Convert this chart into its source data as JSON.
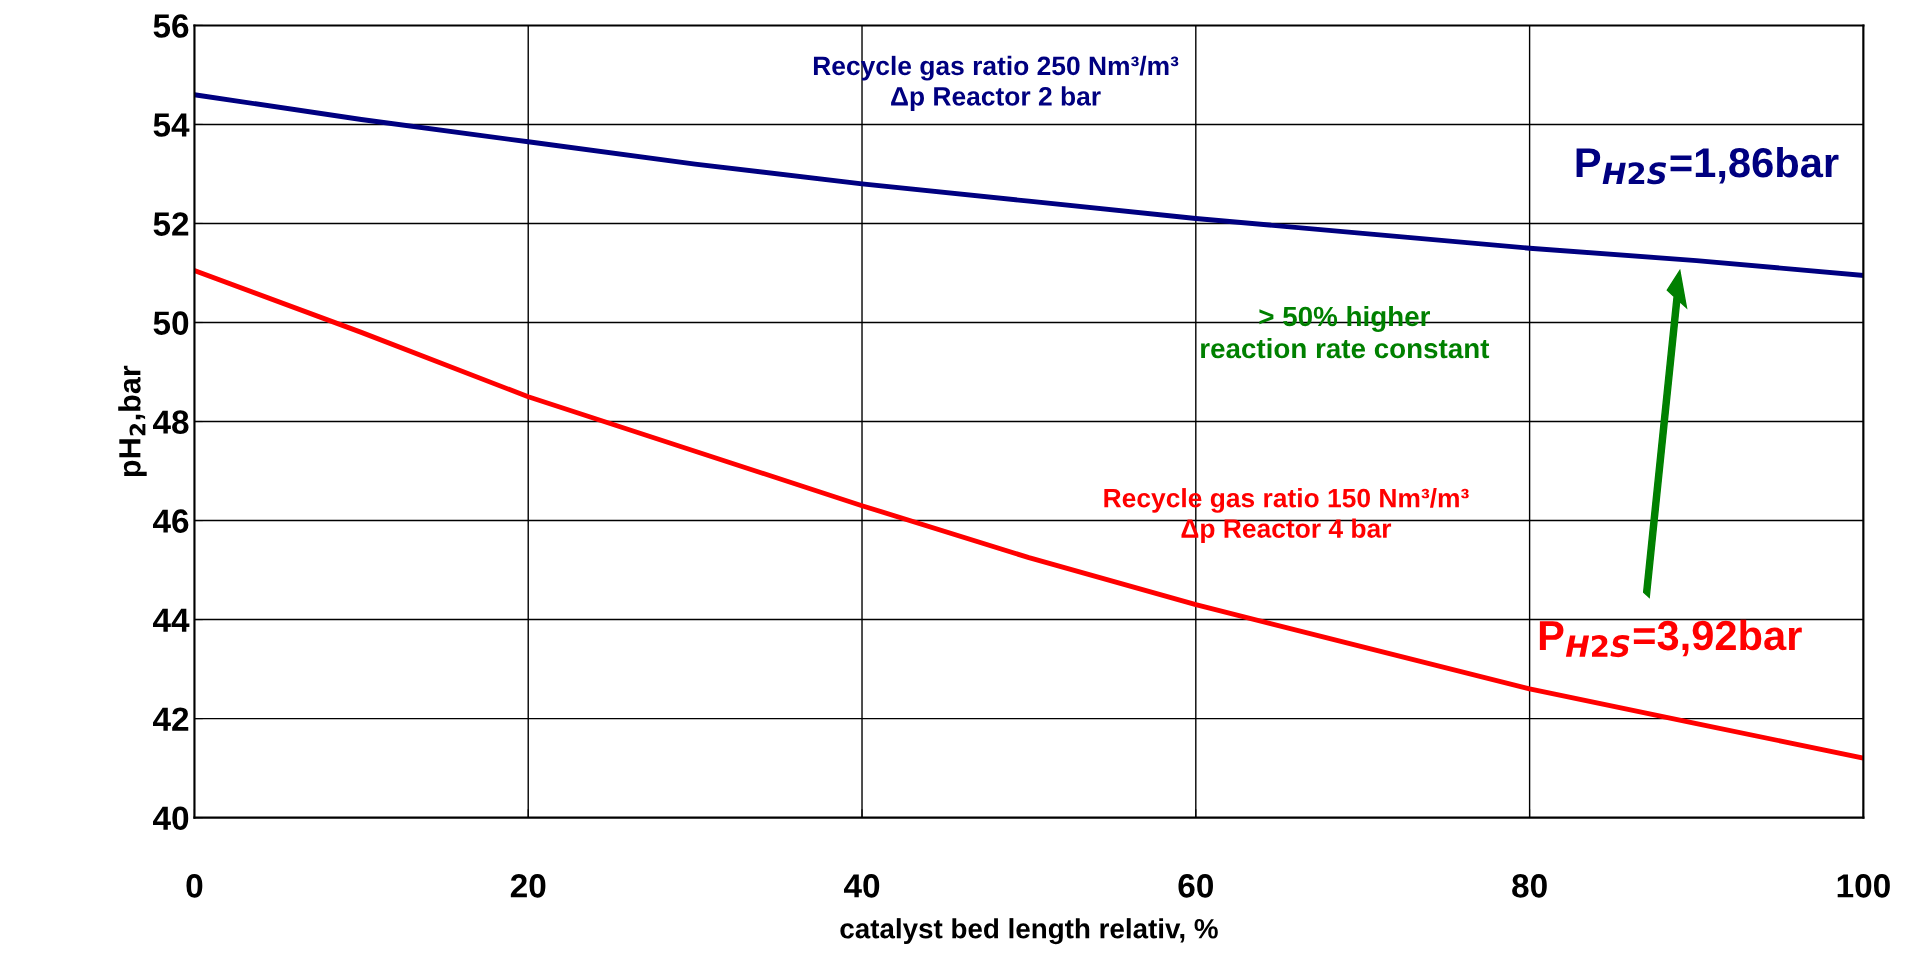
{
  "chart_data": {
    "type": "line",
    "xlabel": "catalyst bed length relativ, %",
    "ylabel": "pH$_{2}$,bar",
    "xlim": [
      0,
      100
    ],
    "ylim": [
      40,
      56
    ],
    "xticks": [
      0,
      20,
      40,
      60,
      80,
      100
    ],
    "yticks": [
      40,
      42,
      44,
      46,
      48,
      50,
      52,
      54,
      56
    ],
    "grid": true,
    "legend": false,
    "marker": "none",
    "line_style": "solid",
    "series": [
      {
        "color": "#000080",
        "x": [
          0,
          10,
          20,
          30,
          40,
          50,
          60,
          70,
          80,
          90,
          100
        ],
        "values": [
          54.6,
          54.1,
          53.65,
          53.2,
          52.8,
          52.45,
          52.1,
          51.8,
          51.5,
          51.25,
          50.95
        ]
      },
      {
        "color": "#ff0000",
        "x": [
          0,
          10,
          20,
          30,
          40,
          50,
          60,
          70,
          80,
          90,
          100
        ],
        "values": [
          51.05,
          49.8,
          48.5,
          47.4,
          46.3,
          45.25,
          44.3,
          43.45,
          42.6,
          41.9,
          41.2
        ]
      }
    ],
    "annotations": [
      "Recycle gas ratio 250 Nm³/m³\nΔp Reactor 2 bar",
      "Recycle gas ratio 150 Nm³/m³\nΔp Reactor 4 bar",
      "> 50% higher\nreaction rate constant",
      "P$_{H2S}$=1,86bar",
      "P$_{H2S}$=3,92bar"
    ]
  }
}
